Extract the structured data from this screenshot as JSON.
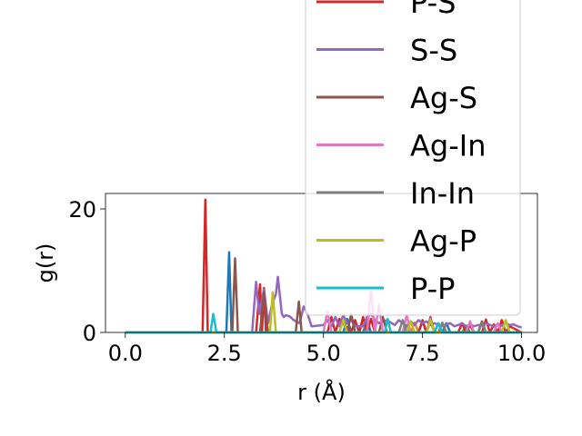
{
  "chart_data": {
    "type": "line",
    "title": "",
    "xlabel": "r (Å)",
    "ylabel": "g(r)",
    "xlim": [
      -0.5,
      10.4
    ],
    "ylim": [
      0,
      22.5
    ],
    "xticks": [
      0.0,
      2.5,
      5.0,
      7.5,
      10.0
    ],
    "xtick_labels": [
      "0.0",
      "2.5",
      "5.0",
      "7.5",
      "10.0"
    ],
    "yticks": [
      0,
      20
    ],
    "ytick_labels": [
      "0",
      "20"
    ],
    "grid": false,
    "legend_placement": "top-right",
    "series": [
      {
        "name": "",
        "color": "#1f77b4",
        "x": [
          0,
          2.55,
          2.62,
          2.68,
          3.0,
          5.5,
          5.6,
          5.7,
          6.0,
          6.1,
          6.2,
          7.4,
          7.5,
          7.6,
          8.0,
          8.1,
          8.2,
          10.0
        ],
        "y": [
          0,
          0,
          13.0,
          0,
          0,
          0,
          2.2,
          0,
          0,
          2.0,
          0,
          0,
          1.8,
          0,
          0,
          1.5,
          0,
          0
        ]
      },
      {
        "name": "",
        "color": "#ff7f0e",
        "x": [
          0,
          5.9,
          6.0,
          6.1,
          7.2,
          7.3,
          7.4,
          9.4,
          9.5,
          9.6,
          10.0
        ],
        "y": [
          0,
          0,
          1.8,
          0,
          0,
          1.6,
          0,
          0,
          1.5,
          0,
          0
        ]
      },
      {
        "name": "",
        "color": "#2ca02c",
        "x": [
          0,
          7.0,
          7.1,
          7.2,
          8.5,
          8.6,
          8.7,
          10.0
        ],
        "y": [
          0,
          0,
          1.2,
          0,
          0,
          1.0,
          0,
          0
        ]
      },
      {
        "name": "P-S",
        "color": "#d62728",
        "x": [
          0,
          1.95,
          2.02,
          2.08,
          3.3,
          3.4,
          3.45,
          3.5,
          3.55,
          4.0,
          5.1,
          5.2,
          5.3,
          5.4,
          5.7,
          5.8,
          5.9,
          6.0,
          6.1,
          6.2,
          6.3,
          6.4,
          7.4,
          7.5,
          7.6,
          7.7,
          7.8,
          7.9,
          8.0,
          8.1,
          8.4,
          8.5,
          8.6,
          8.7,
          8.8,
          9.0,
          9.1,
          9.2,
          9.3,
          9.4,
          9.5,
          9.6,
          9.7,
          10.0
        ],
        "y": [
          0,
          0,
          21.5,
          0,
          0,
          7.8,
          0,
          7.2,
          0,
          0,
          0,
          2.5,
          0,
          2.2,
          0,
          2.0,
          0,
          2.5,
          0,
          2.2,
          0,
          0,
          0,
          2.0,
          0,
          1.8,
          0,
          1.5,
          0,
          0,
          0,
          1.5,
          0,
          1.2,
          0,
          0,
          2.1,
          0,
          1.3,
          0,
          2.0,
          0,
          1.0,
          0
        ]
      },
      {
        "name": "S-S",
        "color": "#9467bd",
        "x": [
          0,
          3.2,
          3.3,
          3.38,
          3.5,
          3.6,
          3.7,
          3.8,
          3.85,
          3.95,
          4.0,
          4.05,
          4.15,
          4.25,
          4.4,
          4.5,
          4.6,
          4.7,
          5.0,
          5.1,
          5.2,
          5.3,
          5.4,
          5.5,
          5.6,
          5.7,
          5.8,
          6.0,
          6.1,
          6.2,
          6.3,
          6.4,
          6.6,
          6.8,
          6.9,
          7.0,
          7.1,
          7.2,
          7.3,
          7.4,
          7.5,
          7.6,
          7.7,
          7.8,
          7.9,
          8.0,
          8.2,
          8.3,
          8.4,
          8.5,
          8.6,
          8.7,
          8.8,
          8.9,
          9.0,
          9.1,
          9.2,
          9.3,
          9.4,
          9.5,
          9.6,
          9.7,
          9.8,
          9.9,
          10.0
        ],
        "y": [
          0,
          0,
          8.2,
          3.0,
          7.0,
          1.5,
          4.5,
          6.2,
          9.0,
          3.0,
          2.5,
          2.8,
          2.6,
          2.0,
          1.5,
          4.2,
          3.0,
          1.0,
          1.2,
          2.0,
          1.0,
          2.5,
          1.0,
          2.8,
          1.5,
          2.0,
          1.0,
          1.0,
          2.5,
          3.0,
          2.0,
          1.5,
          2.0,
          1.2,
          2.0,
          1.5,
          1.0,
          1.8,
          1.2,
          2.0,
          1.5,
          1.8,
          1.2,
          1.5,
          1.2,
          1.0,
          1.5,
          1.0,
          1.2,
          1.5,
          1.0,
          1.3,
          1.0,
          1.2,
          1.1,
          1.5,
          1.2,
          1.0,
          1.3,
          1.1,
          1.5,
          1.2,
          1.3,
          1.0,
          0.8
        ]
      },
      {
        "name": "Ag-S",
        "color": "#8c564b",
        "x": [
          0,
          2.7,
          2.77,
          2.84,
          3.4,
          3.5,
          3.6,
          4.3,
          4.38,
          4.45,
          4.6,
          5.6,
          5.7,
          5.8,
          6.4,
          6.5,
          6.6,
          7.6,
          7.7,
          7.8,
          8.9,
          9.0,
          9.1,
          10.0
        ],
        "y": [
          0,
          0,
          12.0,
          0,
          0,
          6.5,
          0,
          0,
          5.0,
          0,
          0,
          0,
          3.0,
          0,
          0,
          2.5,
          0,
          0,
          2.5,
          0,
          0,
          1.8,
          0,
          0
        ]
      },
      {
        "name": "Ag-In",
        "color": "#e377c2",
        "x": [
          0,
          5.0,
          5.1,
          5.2,
          6.1,
          6.2,
          6.3,
          6.4,
          6.5,
          7.0,
          7.1,
          7.2,
          7.6,
          7.7,
          7.8,
          8.6,
          8.7,
          8.8,
          9.3,
          9.4,
          9.5,
          10.0
        ],
        "y": [
          0,
          0,
          3.5,
          0,
          0,
          7.0,
          0,
          4.5,
          0,
          0,
          2.8,
          0,
          0,
          2.2,
          0,
          0,
          1.8,
          0,
          0,
          1.5,
          0,
          0
        ]
      },
      {
        "name": "In-In",
        "color": "#7f7f7f",
        "x": [
          0,
          6.9,
          7.0,
          7.1,
          7.9,
          8.0,
          8.1,
          8.9,
          9.0,
          9.1,
          10.0
        ],
        "y": [
          0,
          0,
          2.0,
          0,
          0,
          1.6,
          0,
          0,
          1.5,
          0,
          0
        ]
      },
      {
        "name": "Ag-P",
        "color": "#bcbd22",
        "x": [
          0,
          3.65,
          3.72,
          3.8,
          5.4,
          5.5,
          5.6,
          7.1,
          7.2,
          7.3,
          7.6,
          7.7,
          7.8,
          9.5,
          9.6,
          9.7,
          10.0
        ],
        "y": [
          0,
          0,
          6.5,
          0,
          0,
          2.0,
          0,
          0,
          1.8,
          0,
          0,
          2.0,
          0,
          0,
          2.0,
          0,
          0
        ]
      },
      {
        "name": "P-P",
        "color": "#17becf",
        "x": [
          0,
          2.15,
          2.22,
          2.3,
          6.55,
          6.62,
          6.7,
          7.8,
          7.9,
          8.0,
          10.0
        ],
        "y": [
          0,
          0,
          3.0,
          0,
          0,
          2.2,
          0,
          0,
          1.5,
          0,
          0
        ]
      }
    ]
  }
}
